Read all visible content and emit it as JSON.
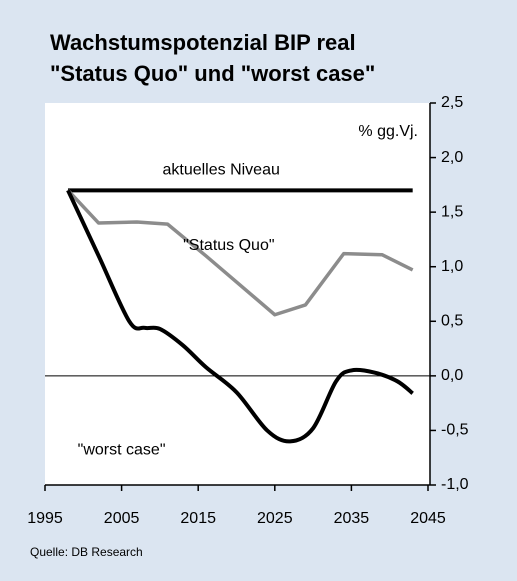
{
  "chart_data": {
    "type": "line",
    "title": "Wachstumspotenzial BIP real",
    "subtitle": "\"Status Quo\" und \"worst case\"",
    "y_label": "% gg.Vj.",
    "source": "Quelle: DB Research",
    "xlim": [
      1995,
      2045
    ],
    "xticks": [
      1995,
      2005,
      2015,
      2025,
      2035,
      2045
    ],
    "ylim": [
      -1.0,
      2.5
    ],
    "yticks": [
      {
        "value": 2.5,
        "label": "2,5"
      },
      {
        "value": 2.0,
        "label": "2,0"
      },
      {
        "value": 1.5,
        "label": "1,5"
      },
      {
        "value": 1.0,
        "label": "1,0"
      },
      {
        "value": 0.5,
        "label": "0,5"
      },
      {
        "value": 0.0,
        "label": "0,0"
      },
      {
        "value": -0.5,
        "label": "-0,5"
      },
      {
        "value": -1.0,
        "label": "-1,0"
      }
    ],
    "series": [
      {
        "name": "aktuelles Niveau",
        "color": "#000000",
        "x": [
          1998,
          2043
        ],
        "values": [
          1.7,
          1.7
        ]
      },
      {
        "name": "\"Status Quo\"",
        "color": "#8c8c8c",
        "x": [
          1998,
          2002,
          2007,
          2011,
          2016,
          2025,
          2029,
          2034,
          2039,
          2043
        ],
        "values": [
          1.7,
          1.4,
          1.41,
          1.39,
          1.1,
          0.56,
          0.65,
          1.12,
          1.11,
          0.97
        ]
      },
      {
        "name": "\"worst case\"",
        "color": "#000000",
        "smooth": true,
        "x": [
          1998,
          2002,
          2006,
          2008,
          2010,
          2013,
          2016,
          2020,
          2024,
          2027,
          2030,
          2033,
          2035,
          2038,
          2041,
          2043
        ],
        "values": [
          1.7,
          1.1,
          0.5,
          0.44,
          0.43,
          0.28,
          0.08,
          -0.15,
          -0.5,
          -0.6,
          -0.48,
          -0.05,
          0.05,
          0.03,
          -0.05,
          -0.16
        ]
      }
    ]
  }
}
